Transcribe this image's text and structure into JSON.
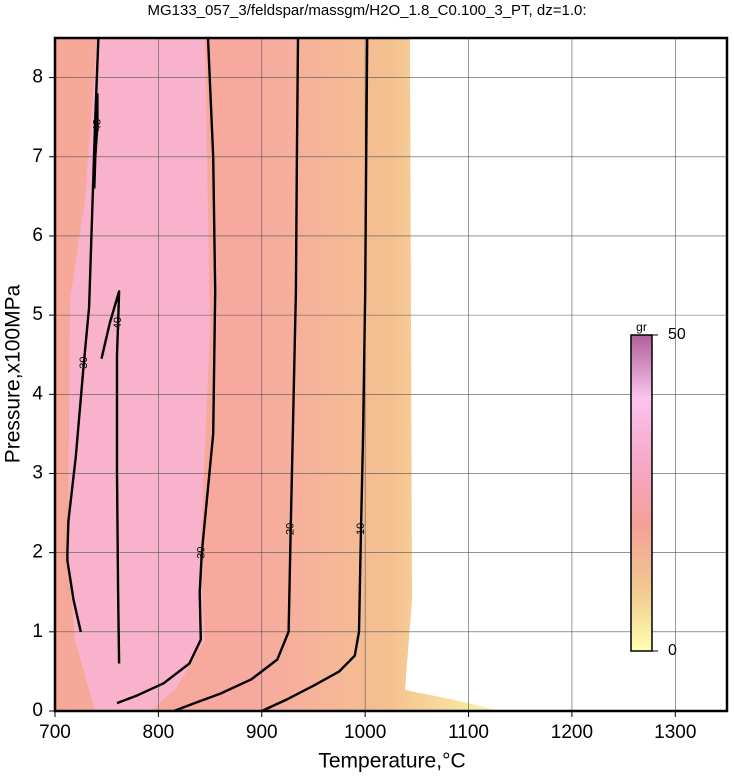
{
  "chart_data": {
    "type": "contour",
    "title": "MG133_057_3/feldspar/massgm/H2O_1.8_C0.100_3_PT, dz=1.0:",
    "x_label": "Temperature,°C",
    "y_label": "Pressure,x100MPa",
    "xlim": [
      700,
      1350
    ],
    "ylim": [
      0,
      8.5
    ],
    "xticks": [
      700,
      800,
      900,
      1000,
      1100,
      1200,
      1300
    ],
    "yticks": [
      0,
      1,
      2,
      3,
      4,
      5,
      6,
      7,
      8
    ],
    "grid": true,
    "contours": [
      {
        "level": 10,
        "x": [
          1002,
          1001,
          1000,
          998,
          996,
          994,
          990,
          975,
          950,
          925,
          900
        ],
        "y": [
          8.5,
          7.0,
          5.3,
          3.5,
          2.3,
          1.0,
          0.7,
          0.5,
          0.32,
          0.15,
          0
        ]
      },
      {
        "level": 20,
        "x": [
          935,
          934,
          933,
          930,
          928,
          926,
          915,
          890,
          860,
          835,
          815
        ],
        "y": [
          8.5,
          7.0,
          5.3,
          3.5,
          2.3,
          1.0,
          0.65,
          0.4,
          0.22,
          0.1,
          0
        ]
      },
      {
        "level": 30,
        "x": [
          848,
          853,
          855,
          853,
          842,
          840,
          841,
          830,
          805,
          780,
          760
        ],
        "y": [
          8.5,
          7.0,
          5.3,
          3.5,
          2.0,
          1.5,
          0.9,
          0.6,
          0.35,
          0.2,
          0.1
        ]
      },
      {
        "level": 30,
        "x": [
          742,
          739,
          736,
          733,
          728,
          720,
          713,
          712,
          712,
          718,
          725
        ],
        "y": [
          8.5,
          7.5,
          6.3,
          5.1,
          4.4,
          3.2,
          2.4,
          2.0,
          1.9,
          1.4,
          1.0
        ]
      },
      {
        "level": 40,
        "x": [
          745,
          753,
          762,
          761,
          760,
          760,
          761,
          762
        ],
        "y": [
          4.45,
          4.9,
          5.3,
          4.9,
          4.5,
          3.0,
          1.5,
          0.6
        ]
      },
      {
        "level": 43,
        "x": [
          738,
          739,
          741,
          741
        ],
        "y": [
          6.6,
          7.0,
          7.4,
          7.8
        ]
      }
    ],
    "colorbar": {
      "label": "gr",
      "lim": [
        0,
        50
      ],
      "ticks": [
        0,
        50
      ],
      "colors": [
        "#ffffb0",
        "#f0c890",
        "#f4a098",
        "#f7a8c8",
        "#fac4ec",
        "#b0609a"
      ]
    }
  }
}
